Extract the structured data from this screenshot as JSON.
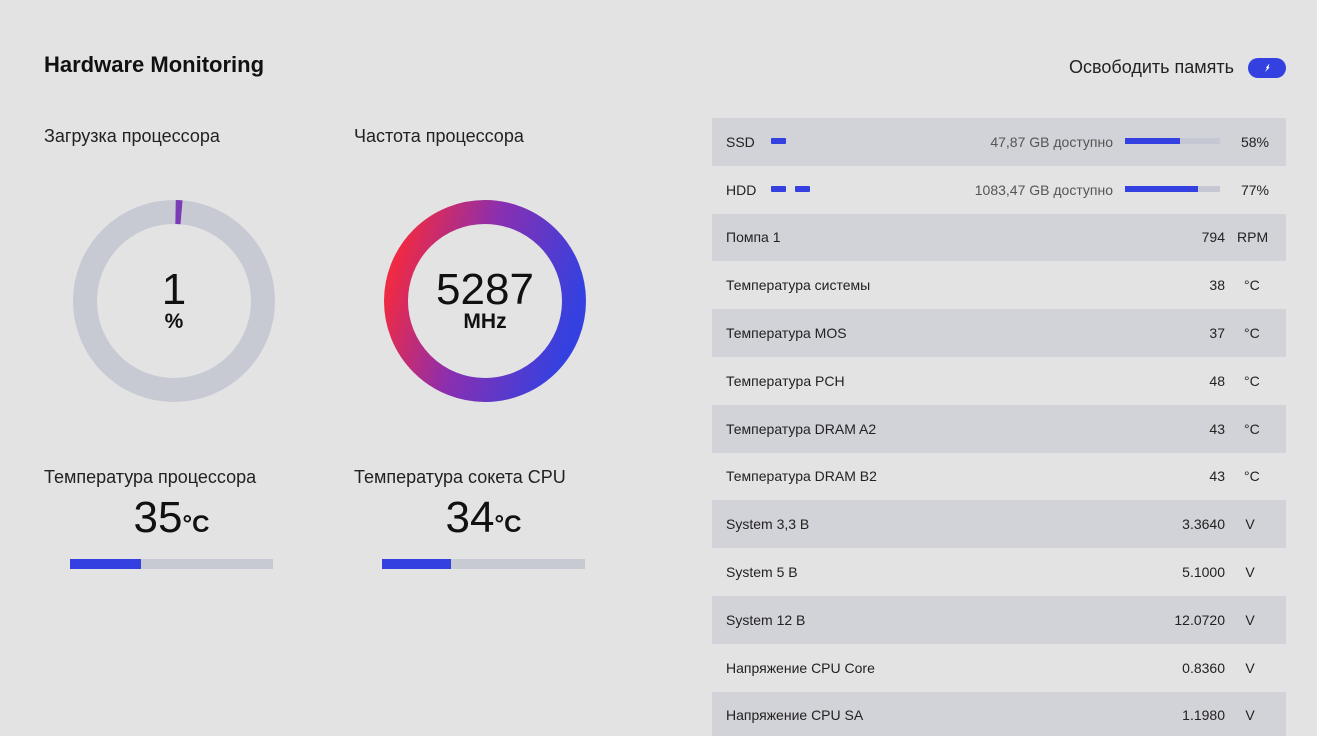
{
  "header": {
    "title": "Hardware Monitoring",
    "free_memory_label": "Освободить память"
  },
  "colors": {
    "accent": "#3441e0",
    "track": "#c7cad3",
    "gradient_start": "#ee2a45",
    "gradient_mid": "#8a2fb0",
    "gradient_end": "#3441e0",
    "load_tick": "#7a3bb5"
  },
  "cpu_load": {
    "label": "Загрузка процессора",
    "value": "1",
    "unit": "%",
    "fraction": 0.01
  },
  "cpu_freq": {
    "label": "Частота процессора",
    "value": "5287",
    "unit": "MHz"
  },
  "cpu_temp": {
    "label": "Температура процессора",
    "value": "35",
    "unit": "°C",
    "bar_fraction": 0.35
  },
  "socket_temp": {
    "label": "Температура сокета CPU",
    "value": "34",
    "unit": "°C",
    "bar_fraction": 0.34
  },
  "disks": [
    {
      "label": "SSD",
      "available": "47,87 GB доступно",
      "percent": "58%",
      "fraction": 0.58,
      "pills": 1
    },
    {
      "label": "HDD",
      "available": "1083,47 GB доступно",
      "percent": "77%",
      "fraction": 0.77,
      "pills": 2
    }
  ],
  "sensors": [
    {
      "label": "Помпа 1",
      "value": "794",
      "unit": "RPM"
    },
    {
      "label": "Температура системы",
      "value": "38",
      "unit": "°C"
    },
    {
      "label": "Температура MOS",
      "value": "37",
      "unit": "°C"
    },
    {
      "label": "Темпepaтура PCH",
      "value": "48",
      "unit": "°C"
    },
    {
      "label": "Температура DRAM A2",
      "value": "43",
      "unit": "°C"
    },
    {
      "label": "Температура DRAM B2",
      "value": "43",
      "unit": "°C"
    },
    {
      "label": "System 3,3 В",
      "value": "3.3640",
      "unit": "V"
    },
    {
      "label": "System 5 В",
      "value": "5.1000",
      "unit": "V"
    },
    {
      "label": "System 12 В",
      "value": "12.0720",
      "unit": "V"
    },
    {
      "label": "Напряжение CPU Core",
      "value": "0.8360",
      "unit": "V"
    },
    {
      "label": "Напряжение CPU SA",
      "value": "1.1980",
      "unit": "V"
    }
  ]
}
